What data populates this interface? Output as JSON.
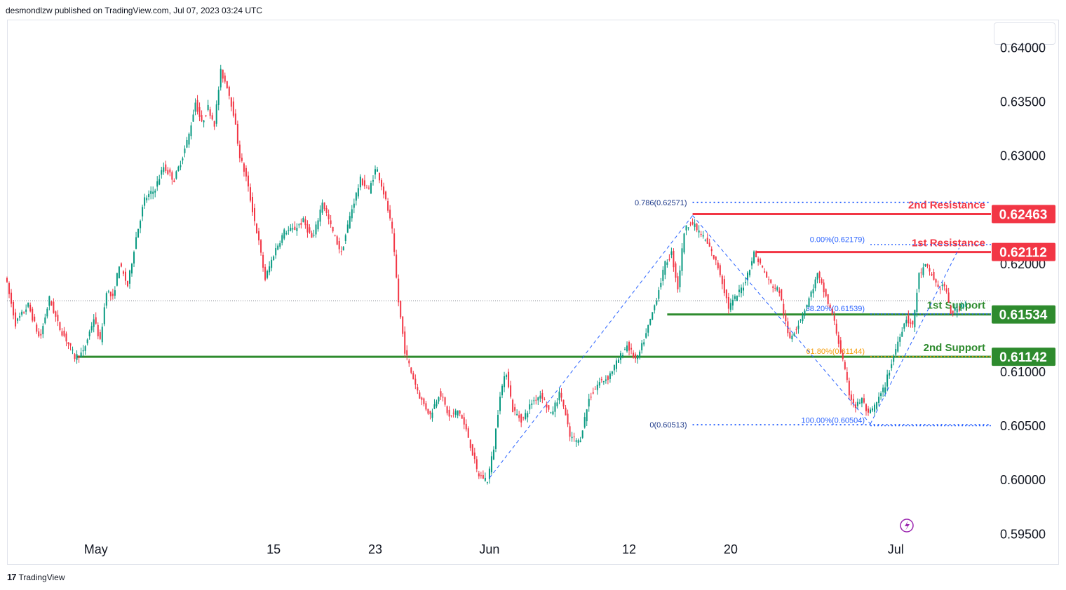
{
  "header": {
    "publisher_text": "desmondlzw published on TradingView.com, Jul 07, 2023 03:24 UTC"
  },
  "footer": {
    "brand": "TradingView",
    "logo_glyph": "17"
  },
  "colors": {
    "up": "#089981",
    "down": "#f23645",
    "resistance": "#f23645",
    "support": "#2e8b2e",
    "fib_blue": "#2962ff",
    "fib_orange": "#f59e0b"
  },
  "chart_data": {
    "type": "candlestick",
    "y_axis": {
      "ticks": [
        "0.64000",
        "0.63500",
        "0.63000",
        "0.62000",
        "0.61000",
        "0.60500",
        "0.60000",
        "0.59500"
      ],
      "tick_values": [
        0.64,
        0.635,
        0.63,
        0.62,
        0.61,
        0.605,
        0.6,
        0.595
      ],
      "range": [
        0.5945,
        0.6425
      ]
    },
    "x_axis": {
      "labels": [
        {
          "text": "May",
          "date": "2023-05-01"
        },
        {
          "text": "15",
          "date": "2023-05-15"
        },
        {
          "text": "23",
          "date": "2023-05-23"
        },
        {
          "text": "Jun",
          "date": "2023-06-01"
        },
        {
          "text": "12",
          "date": "2023-06-12"
        },
        {
          "text": "20",
          "date": "2023-06-20"
        },
        {
          "text": "Jul",
          "date": "2023-07-03"
        }
      ]
    },
    "path_points": [
      [
        "2023-04-24T00:00",
        0.619
      ],
      [
        "2023-04-24T20:00",
        0.6145
      ],
      [
        "2023-04-25T20:00",
        0.6162
      ],
      [
        "2023-04-26T18:00",
        0.613
      ],
      [
        "2023-04-27T12:00",
        0.6168
      ],
      [
        "2023-04-28T06:00",
        0.6142
      ],
      [
        "2023-04-28T20:00",
        0.613
      ],
      [
        "2023-04-29T12:00",
        0.6114
      ],
      [
        "2023-04-30T04:00",
        0.6118
      ],
      [
        "2023-05-01T00:00",
        0.615
      ],
      [
        "2023-05-01T12:00",
        0.6128
      ],
      [
        "2023-05-02T00:00",
        0.6176
      ],
      [
        "2023-05-02T12:00",
        0.6168
      ],
      [
        "2023-05-03T00:00",
        0.62
      ],
      [
        "2023-05-03T16:00",
        0.618
      ],
      [
        "2023-05-04T08:00",
        0.6225
      ],
      [
        "2023-05-05T00:00",
        0.626
      ],
      [
        "2023-05-05T18:00",
        0.6268
      ],
      [
        "2023-05-06T12:00",
        0.629
      ],
      [
        "2023-05-07T08:00",
        0.6278
      ],
      [
        "2023-05-08T00:00",
        0.63
      ],
      [
        "2023-05-08T12:00",
        0.632
      ],
      [
        "2023-05-09T00:00",
        0.635
      ],
      [
        "2023-05-09T12:00",
        0.633
      ],
      [
        "2023-05-10T00:00",
        0.6345
      ],
      [
        "2023-05-10T12:00",
        0.633
      ],
      [
        "2023-05-11T00:00",
        0.6378
      ],
      [
        "2023-05-11T12:00",
        0.6365
      ],
      [
        "2023-05-12T00:00",
        0.634
      ],
      [
        "2023-05-12T12:00",
        0.63
      ],
      [
        "2023-05-13T00:00",
        0.628
      ],
      [
        "2023-05-13T12:00",
        0.625
      ],
      [
        "2023-05-14T00:00",
        0.622
      ],
      [
        "2023-05-14T12:00",
        0.6186
      ],
      [
        "2023-05-15T06:00",
        0.6212
      ],
      [
        "2023-05-16T00:00",
        0.623
      ],
      [
        "2023-05-16T18:00",
        0.6232
      ],
      [
        "2023-05-17T12:00",
        0.624
      ],
      [
        "2023-05-18T06:00",
        0.6222
      ],
      [
        "2023-05-19T00:00",
        0.6258
      ],
      [
        "2023-05-19T18:00",
        0.6232
      ],
      [
        "2023-05-20T12:00",
        0.621
      ],
      [
        "2023-05-21T06:00",
        0.6248
      ],
      [
        "2023-05-22T00:00",
        0.6278
      ],
      [
        "2023-05-22T16:00",
        0.6268
      ],
      [
        "2023-05-23T06:00",
        0.629
      ],
      [
        "2023-05-23T18:00",
        0.627
      ],
      [
        "2023-05-24T04:00",
        0.625
      ],
      [
        "2023-05-24T12:00",
        0.623
      ],
      [
        "2023-05-25T00:00",
        0.6165
      ],
      [
        "2023-05-25T12:00",
        0.612
      ],
      [
        "2023-05-26T00:00",
        0.61
      ],
      [
        "2023-05-26T18:00",
        0.6075
      ],
      [
        "2023-05-27T12:00",
        0.606
      ],
      [
        "2023-05-28T06:00",
        0.6082
      ],
      [
        "2023-05-29T00:00",
        0.6058
      ],
      [
        "2023-05-29T18:00",
        0.6065
      ],
      [
        "2023-05-30T12:00",
        0.604
      ],
      [
        "2023-05-31T06:00",
        0.6005
      ],
      [
        "2023-06-01T00:00",
        0.6
      ],
      [
        "2023-06-01T12:00",
        0.603
      ],
      [
        "2023-06-02T00:00",
        0.608
      ],
      [
        "2023-06-02T12:00",
        0.61
      ],
      [
        "2023-06-03T00:00",
        0.6065
      ],
      [
        "2023-06-03T18:00",
        0.6055
      ],
      [
        "2023-06-04T12:00",
        0.6072
      ],
      [
        "2023-06-05T06:00",
        0.608
      ],
      [
        "2023-06-06T00:00",
        0.606
      ],
      [
        "2023-06-06T18:00",
        0.6082
      ],
      [
        "2023-06-07T12:00",
        0.604
      ],
      [
        "2023-06-08T06:00",
        0.6035
      ],
      [
        "2023-06-09T00:00",
        0.6075
      ],
      [
        "2023-06-09T18:00",
        0.609
      ],
      [
        "2023-06-10T12:00",
        0.6095
      ],
      [
        "2023-06-11T06:00",
        0.611
      ],
      [
        "2023-06-12T00:00",
        0.6125
      ],
      [
        "2023-06-12T18:00",
        0.611
      ],
      [
        "2023-06-13T12:00",
        0.6135
      ],
      [
        "2023-06-14T06:00",
        0.6165
      ],
      [
        "2023-06-15T00:00",
        0.62
      ],
      [
        "2023-06-15T12:00",
        0.621
      ],
      [
        "2023-06-16T00:00",
        0.6178
      ],
      [
        "2023-06-16T12:00",
        0.623
      ],
      [
        "2023-06-17T00:00",
        0.624
      ],
      [
        "2023-06-17T12:00",
        0.6232
      ],
      [
        "2023-06-18T00:00",
        0.6225
      ],
      [
        "2023-06-18T12:00",
        0.6215
      ],
      [
        "2023-06-19T06:00",
        0.6195
      ],
      [
        "2023-06-20T00:00",
        0.616
      ],
      [
        "2023-06-20T12:00",
        0.6168
      ],
      [
        "2023-06-21T06:00",
        0.6182
      ],
      [
        "2023-06-22T00:00",
        0.621
      ],
      [
        "2023-06-22T12:00",
        0.62
      ],
      [
        "2023-06-23T06:00",
        0.6182
      ],
      [
        "2023-06-24T00:00",
        0.6175
      ],
      [
        "2023-06-24T18:00",
        0.613
      ],
      [
        "2023-06-25T12:00",
        0.6145
      ],
      [
        "2023-06-26T06:00",
        0.6165
      ],
      [
        "2023-06-27T00:00",
        0.619
      ],
      [
        "2023-06-27T12:00",
        0.6175
      ],
      [
        "2023-06-28T06:00",
        0.615
      ],
      [
        "2023-06-29T00:00",
        0.611
      ],
      [
        "2023-06-29T12:00",
        0.608
      ],
      [
        "2023-06-30T00:00",
        0.6068
      ],
      [
        "2023-06-30T12:00",
        0.6075
      ],
      [
        "2023-07-01T00:00",
        0.606
      ],
      [
        "2023-07-01T12:00",
        0.6068
      ],
      [
        "2023-07-02T06:00",
        0.6085
      ],
      [
        "2023-07-03T00:00",
        0.6115
      ],
      [
        "2023-07-03T12:00",
        0.6135
      ],
      [
        "2023-07-04T00:00",
        0.615
      ],
      [
        "2023-07-04T12:00",
        0.6142
      ],
      [
        "2023-07-05T00:00",
        0.619
      ],
      [
        "2023-07-05T12:00",
        0.6198
      ],
      [
        "2023-07-06T00:00",
        0.619
      ],
      [
        "2023-07-06T12:00",
        0.6178
      ],
      [
        "2023-07-07T00:00",
        0.618
      ],
      [
        "2023-07-07T12:00",
        0.6155
      ],
      [
        "2023-07-08T00:00",
        0.6158
      ],
      [
        "2023-07-08T12:00",
        0.6165
      ]
    ],
    "candle_spacing_hours": 4,
    "current_price": 0.6166,
    "levels": [
      {
        "name": "2nd Resistance",
        "value": 0.62463,
        "label": "0.62463",
        "kind": "resistance",
        "start": "2023-06-17T00:00"
      },
      {
        "name": "1st Resistance",
        "value": 0.62112,
        "label": "0.62112",
        "kind": "resistance",
        "start": "2023-06-22T00:00"
      },
      {
        "name": "1st Support",
        "value": 0.61534,
        "label": "0.61534",
        "kind": "support",
        "start": "2023-06-15T00:00"
      },
      {
        "name": "2nd Support",
        "value": 0.61142,
        "label": "0.61142",
        "kind": "support",
        "start": "2023-04-29T12:00"
      }
    ],
    "fib_upper": [
      {
        "label": "0.786(0.62571)",
        "value": 0.62571,
        "color": "#2962ff",
        "start": "2023-06-17T00:00"
      },
      {
        "label": "0(0.60513)",
        "value": 0.60513,
        "color": "#2962ff",
        "start": "2023-06-17T00:00"
      }
    ],
    "fib_lower": [
      {
        "label": "0.00%(0.62179)",
        "value": 0.62179,
        "color": "#2962ff",
        "start": "2023-07-01T00:00"
      },
      {
        "label": "38.20%(0.61539)",
        "value": 0.61539,
        "color": "#2962ff",
        "start": "2023-07-01T00:00"
      },
      {
        "label": "61.80%(0.61144)",
        "value": 0.61144,
        "color": "#f59e0b",
        "start": "2023-07-01T00:00"
      },
      {
        "label": "100.00%(0.60504)",
        "value": 0.60504,
        "color": "#2962ff",
        "start": "2023-07-01T00:00"
      }
    ],
    "swing_lines": [
      [
        [
          "2023-06-01T00:00",
          0.6002
        ],
        [
          "2023-06-17T00:00",
          0.6245
        ]
      ],
      [
        [
          "2023-06-17T00:00",
          0.6245
        ],
        [
          "2023-07-01T00:00",
          0.6052
        ]
      ],
      [
        [
          "2023-07-01T00:00",
          0.6052
        ],
        [
          "2023-07-08T00:00",
          0.6215
        ]
      ]
    ]
  }
}
